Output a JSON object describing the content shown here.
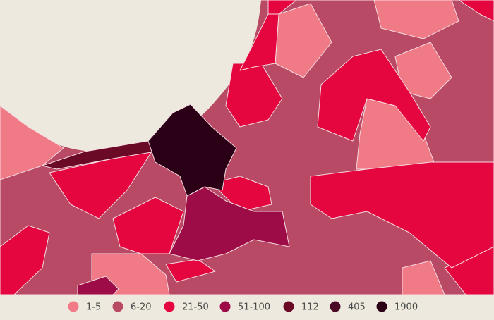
{
  "legend": {
    "items": [
      {
        "label": "1-5",
        "color": "#f07a86"
      },
      {
        "label": "6-20",
        "color": "#b94a66"
      },
      {
        "label": "21-50",
        "color": "#e5063f"
      },
      {
        "label": "51-100",
        "color": "#9d0c47"
      },
      {
        "label": "112",
        "color": "#6b0a26"
      },
      {
        "label": "405",
        "color": "#4a0a25"
      },
      {
        "label": "1900",
        "color": "#2b0016"
      }
    ]
  }
}
